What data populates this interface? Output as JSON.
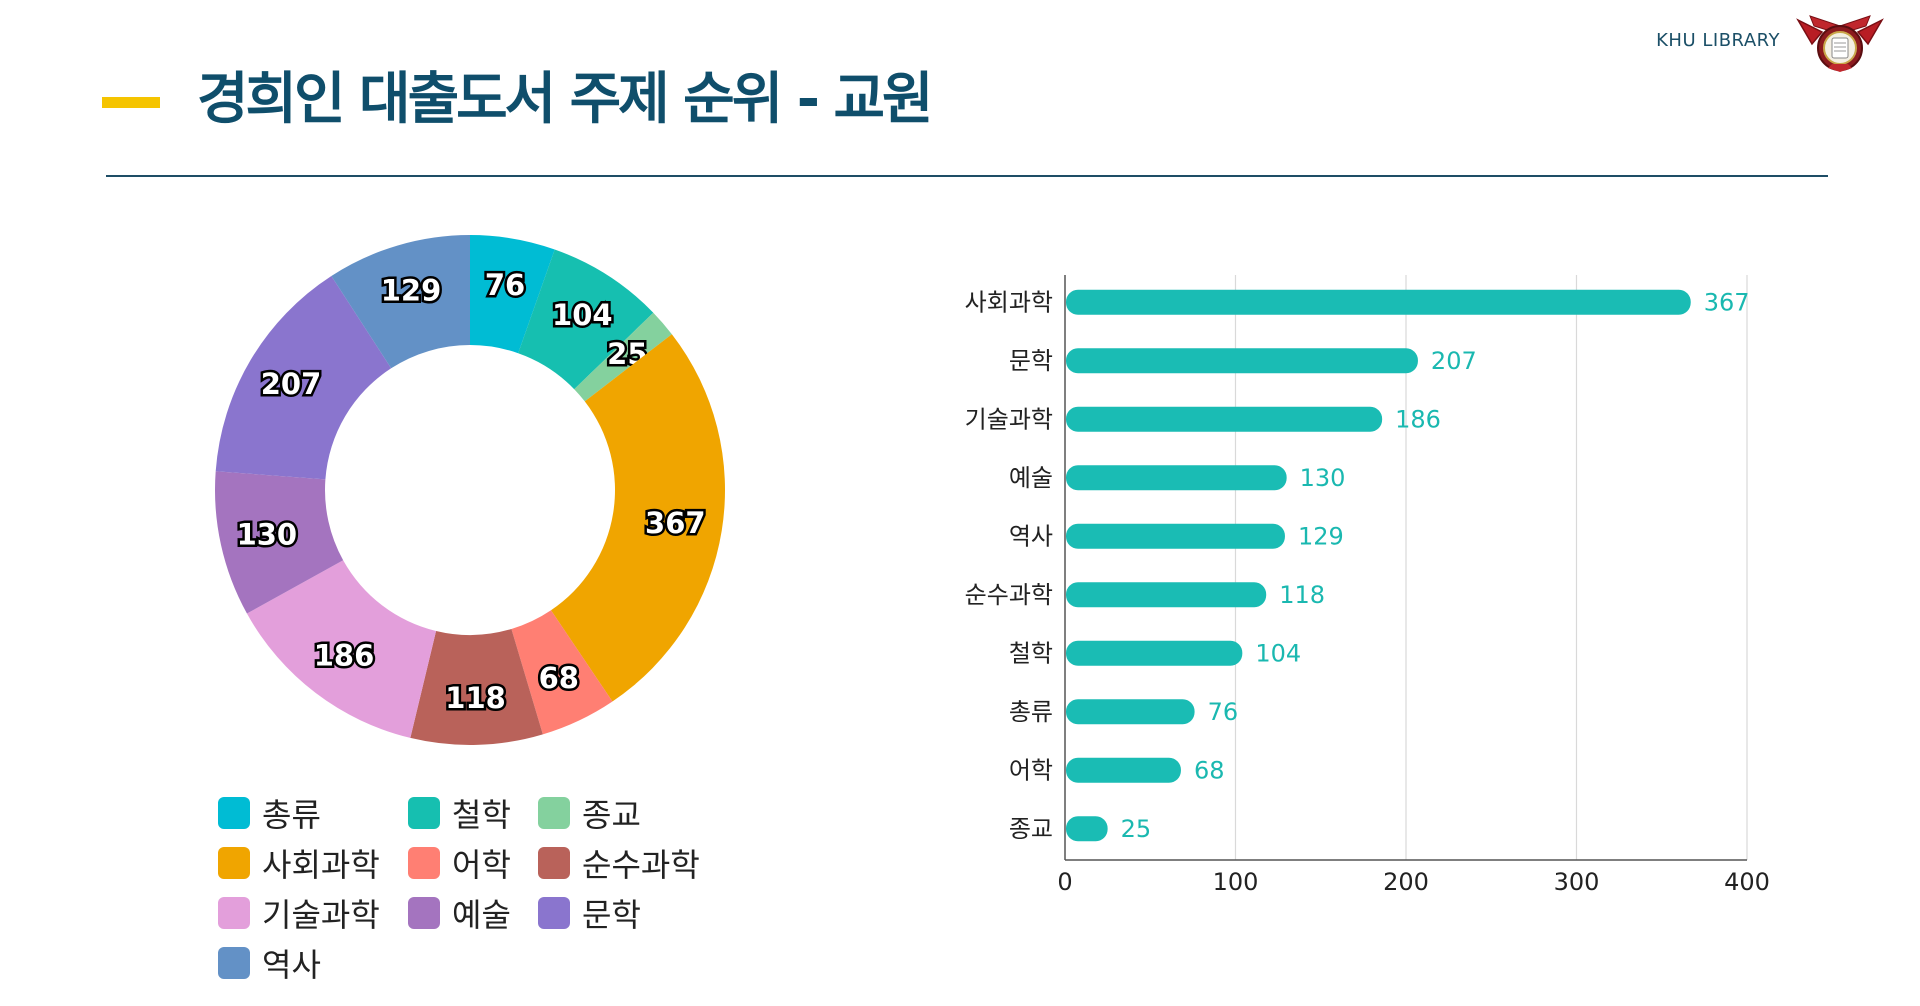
{
  "header": {
    "title": "경희인 대출도서 주제 순위 - 교원",
    "brand": "KHU LIBRARY"
  },
  "colors": {
    "accent": "#f5c400",
    "title": "#0f4e6b",
    "bar": "#1abcb4",
    "value_label": "#1ab8b0"
  },
  "chart_data": [
    {
      "type": "pie",
      "subtype": "donut",
      "slices": [
        {
          "label": "총류",
          "value": 76,
          "color": "#00bcd4"
        },
        {
          "label": "철학",
          "value": 104,
          "color": "#16bfb0"
        },
        {
          "label": "종교",
          "value": 25,
          "color": "#84d19e"
        },
        {
          "label": "사회과학",
          "value": 367,
          "color": "#f0a500"
        },
        {
          "label": "어학",
          "value": 68,
          "color": "#ff7f73"
        },
        {
          "label": "순수과학",
          "value": 118,
          "color": "#b9625a"
        },
        {
          "label": "기술과학",
          "value": 186,
          "color": "#e39fdb"
        },
        {
          "label": "예술",
          "value": 130,
          "color": "#a474bf"
        },
        {
          "label": "문학",
          "value": 207,
          "color": "#8a75ce"
        },
        {
          "label": "역사",
          "value": 129,
          "color": "#6391c6"
        }
      ],
      "legend": [
        "총류",
        "철학",
        "종교",
        "사회과학",
        "어학",
        "순수과학",
        "기술과학",
        "예술",
        "문학",
        "역사"
      ],
      "legend_placement": "bottom"
    },
    {
      "type": "bar",
      "orientation": "horizontal",
      "categories": [
        "사회과학",
        "문학",
        "기술과학",
        "예술",
        "역사",
        "순수과학",
        "철학",
        "총류",
        "어학",
        "종교"
      ],
      "values": [
        367,
        207,
        186,
        130,
        129,
        118,
        104,
        76,
        68,
        25
      ],
      "xlim": [
        0,
        400
      ],
      "xticks": [
        0,
        100,
        200,
        300,
        400
      ],
      "grid": "vertical"
    }
  ]
}
